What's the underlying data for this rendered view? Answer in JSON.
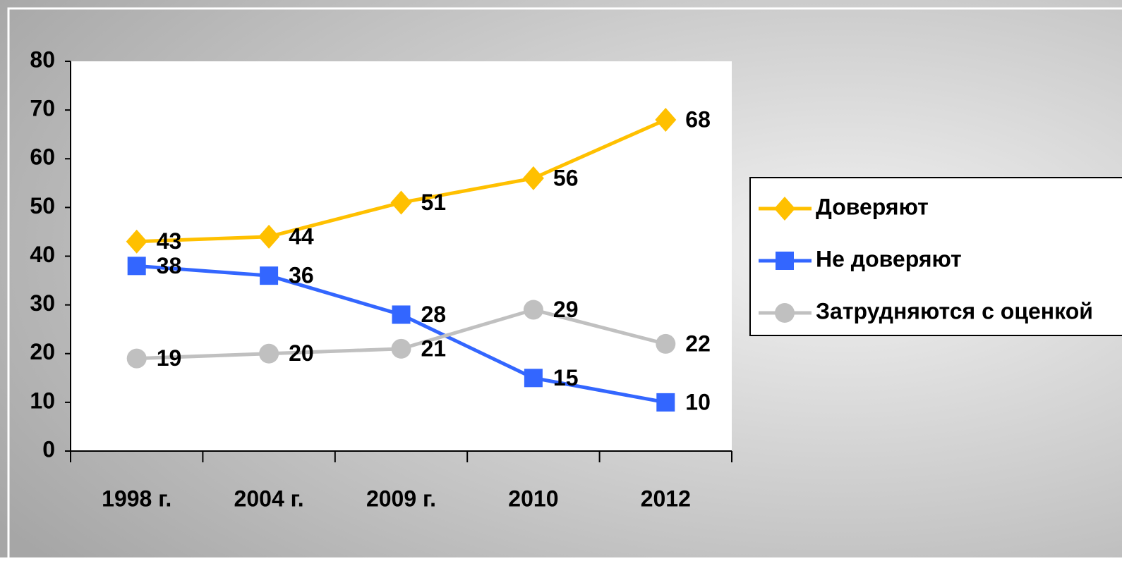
{
  "chart_data": {
    "type": "line",
    "categories": [
      "1998 г.",
      "2004 г.",
      "2009 г.",
      "2010",
      "2012"
    ],
    "series": [
      {
        "name": "Доверяют",
        "color": "#FFC000",
        "marker": "diamond",
        "values": [
          43,
          44,
          51,
          56,
          68
        ]
      },
      {
        "name": "Не доверяют",
        "color": "#3366FF",
        "marker": "square",
        "values": [
          38,
          36,
          28,
          15,
          10
        ]
      },
      {
        "name": "Затрудняются с оценкой",
        "color": "#C0C0C0",
        "marker": "circle",
        "values": [
          19,
          20,
          21,
          29,
          22
        ]
      }
    ],
    "ylim": [
      0,
      80
    ],
    "yticks": [
      0,
      10,
      20,
      30,
      40,
      50,
      60,
      70,
      80
    ],
    "grid": false,
    "legend": "right"
  }
}
